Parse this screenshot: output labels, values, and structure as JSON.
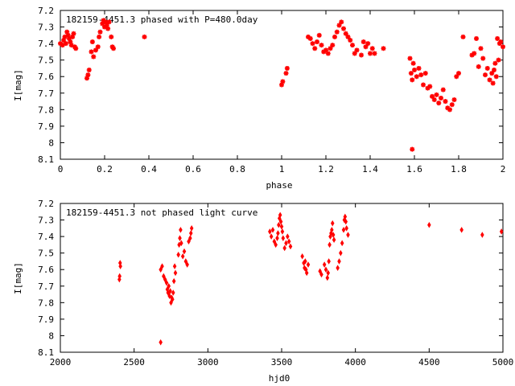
{
  "colors": {
    "points": "#ff0000",
    "axes": "#000000",
    "background": "#ffffff"
  },
  "chart_data": [
    {
      "type": "scatter",
      "title": "182159-4451.3 phased with P=480.0day",
      "xlabel": "phase",
      "ylabel": "I[mag]",
      "xlim": [
        0,
        2
      ],
      "ylim": [
        8.1,
        7.2
      ],
      "y_inverted": true,
      "xticks": [
        "0",
        "0.2",
        "0.4",
        "0.6",
        "0.8",
        "1",
        "1.2",
        "1.4",
        "1.6",
        "1.8",
        "2"
      ],
      "yticks": [
        "7.2",
        "7.3",
        "7.4",
        "7.5",
        "7.6",
        "7.7",
        "7.8",
        "7.9",
        "8",
        "8.1"
      ],
      "marker": "star",
      "series": [
        {
          "points": [
            [
              0.0,
              7.4
            ],
            [
              0.01,
              7.41
            ],
            [
              0.015,
              7.38
            ],
            [
              0.02,
              7.36
            ],
            [
              0.025,
              7.4
            ],
            [
              0.03,
              7.33
            ],
            [
              0.035,
              7.35
            ],
            [
              0.04,
              7.37
            ],
            [
              0.045,
              7.39
            ],
            [
              0.05,
              7.41
            ],
            [
              0.055,
              7.36
            ],
            [
              0.06,
              7.34
            ],
            [
              0.065,
              7.42
            ],
            [
              0.07,
              7.43
            ],
            [
              0.12,
              7.61
            ],
            [
              0.125,
              7.59
            ],
            [
              0.13,
              7.56
            ],
            [
              0.14,
              7.45
            ],
            [
              0.145,
              7.39
            ],
            [
              0.15,
              7.48
            ],
            [
              0.16,
              7.44
            ],
            [
              0.17,
              7.42
            ],
            [
              0.175,
              7.36
            ],
            [
              0.18,
              7.33
            ],
            [
              0.19,
              7.28
            ],
            [
              0.195,
              7.26
            ],
            [
              0.2,
              7.3
            ],
            [
              0.205,
              7.27
            ],
            [
              0.21,
              7.29
            ],
            [
              0.215,
              7.31
            ],
            [
              0.22,
              7.27
            ],
            [
              0.23,
              7.36
            ],
            [
              0.235,
              7.42
            ],
            [
              0.24,
              7.43
            ],
            [
              0.38,
              7.36
            ],
            [
              1.0,
              7.65
            ],
            [
              1.005,
              7.63
            ],
            [
              1.02,
              7.58
            ],
            [
              1.025,
              7.55
            ],
            [
              1.12,
              7.36
            ],
            [
              1.13,
              7.37
            ],
            [
              1.14,
              7.4
            ],
            [
              1.15,
              7.43
            ],
            [
              1.16,
              7.39
            ],
            [
              1.17,
              7.35
            ],
            [
              1.18,
              7.41
            ],
            [
              1.19,
              7.45
            ],
            [
              1.2,
              7.44
            ],
            [
              1.21,
              7.46
            ],
            [
              1.22,
              7.43
            ],
            [
              1.23,
              7.41
            ],
            [
              1.24,
              7.36
            ],
            [
              1.25,
              7.33
            ],
            [
              1.26,
              7.29
            ],
            [
              1.27,
              7.27
            ],
            [
              1.28,
              7.31
            ],
            [
              1.29,
              7.34
            ],
            [
              1.3,
              7.36
            ],
            [
              1.31,
              7.38
            ],
            [
              1.32,
              7.41
            ],
            [
              1.33,
              7.46
            ],
            [
              1.34,
              7.44
            ],
            [
              1.36,
              7.47
            ],
            [
              1.37,
              7.39
            ],
            [
              1.38,
              7.42
            ],
            [
              1.39,
              7.4
            ],
            [
              1.4,
              7.46
            ],
            [
              1.41,
              7.43
            ],
            [
              1.42,
              7.46
            ],
            [
              1.46,
              7.43
            ],
            [
              1.58,
              7.49
            ],
            [
              1.585,
              7.58
            ],
            [
              1.59,
              7.62
            ],
            [
              1.595,
              7.52
            ],
            [
              1.6,
              7.56
            ],
            [
              1.61,
              7.6
            ],
            [
              1.62,
              7.55
            ],
            [
              1.63,
              7.59
            ],
            [
              1.64,
              7.65
            ],
            [
              1.65,
              7.58
            ],
            [
              1.66,
              7.67
            ],
            [
              1.67,
              7.66
            ],
            [
              1.68,
              7.72
            ],
            [
              1.69,
              7.74
            ],
            [
              1.7,
              7.71
            ],
            [
              1.71,
              7.76
            ],
            [
              1.72,
              7.73
            ],
            [
              1.73,
              7.68
            ],
            [
              1.74,
              7.75
            ],
            [
              1.75,
              7.79
            ],
            [
              1.76,
              7.8
            ],
            [
              1.77,
              7.77
            ],
            [
              1.78,
              7.74
            ],
            [
              1.79,
              7.6
            ],
            [
              1.8,
              7.58
            ],
            [
              1.82,
              7.36
            ],
            [
              1.86,
              7.47
            ],
            [
              1.87,
              7.46
            ],
            [
              1.88,
              7.37
            ],
            [
              1.89,
              7.54
            ],
            [
              1.9,
              7.43
            ],
            [
              1.91,
              7.49
            ],
            [
              1.92,
              7.59
            ],
            [
              1.93,
              7.55
            ],
            [
              1.94,
              7.62
            ],
            [
              1.95,
              7.58
            ],
            [
              1.96,
              7.56
            ],
            [
              1.97,
              7.6
            ],
            [
              1.98,
              7.5
            ],
            [
              1.99,
              7.39
            ],
            [
              2.0,
              7.42
            ],
            [
              1.59,
              8.04
            ],
            [
              1.975,
              7.37
            ],
            [
              1.985,
              7.4
            ],
            [
              1.965,
              7.52
            ],
            [
              1.955,
              7.64
            ]
          ]
        }
      ],
      "grid": false
    },
    {
      "type": "scatter",
      "title": "182159-4451.3 not phased light curve",
      "xlabel": "hjd0",
      "ylabel": "I[mag]",
      "xlim": [
        2000,
        5000
      ],
      "ylim": [
        8.1,
        7.2
      ],
      "y_inverted": true,
      "xticks": [
        "2000",
        "2500",
        "3000",
        "3500",
        "4000",
        "4500",
        "5000"
      ],
      "yticks": [
        "7.2",
        "7.3",
        "7.4",
        "7.5",
        "7.6",
        "7.7",
        "7.8",
        "7.9",
        "8",
        "8.1"
      ],
      "marker": "diamond",
      "series": [
        {
          "points": [
            [
              2400,
              7.66
            ],
            [
              2402,
              7.64
            ],
            [
              2405,
              7.56
            ],
            [
              2407,
              7.58
            ],
            [
              2680,
              7.6
            ],
            [
              2690,
              7.58
            ],
            [
              2700,
              7.64
            ],
            [
              2710,
              7.66
            ],
            [
              2720,
              7.68
            ],
            [
              2725,
              7.72
            ],
            [
              2730,
              7.74
            ],
            [
              2735,
              7.7
            ],
            [
              2740,
              7.76
            ],
            [
              2745,
              7.73
            ],
            [
              2750,
              7.8
            ],
            [
              2755,
              7.77
            ],
            [
              2760,
              7.78
            ],
            [
              2765,
              7.74
            ],
            [
              2770,
              7.67
            ],
            [
              2775,
              7.58
            ],
            [
              2780,
              7.62
            ],
            [
              2800,
              7.51
            ],
            [
              2805,
              7.45
            ],
            [
              2810,
              7.41
            ],
            [
              2815,
              7.36
            ],
            [
              2820,
              7.44
            ],
            [
              2830,
              7.52
            ],
            [
              2840,
              7.49
            ],
            [
              2850,
              7.55
            ],
            [
              2860,
              7.57
            ],
            [
              2870,
              7.43
            ],
            [
              2880,
              7.41
            ],
            [
              2885,
              7.38
            ],
            [
              2890,
              7.35
            ],
            [
              2680,
              8.04
            ],
            [
              3420,
              7.37
            ],
            [
              3430,
              7.4
            ],
            [
              3440,
              7.36
            ],
            [
              3450,
              7.43
            ],
            [
              3460,
              7.45
            ],
            [
              3470,
              7.41
            ],
            [
              3475,
              7.38
            ],
            [
              3480,
              7.33
            ],
            [
              3485,
              7.29
            ],
            [
              3490,
              7.27
            ],
            [
              3495,
              7.31
            ],
            [
              3500,
              7.34
            ],
            [
              3505,
              7.37
            ],
            [
              3510,
              7.41
            ],
            [
              3520,
              7.47
            ],
            [
              3530,
              7.44
            ],
            [
              3540,
              7.4
            ],
            [
              3550,
              7.43
            ],
            [
              3560,
              7.46
            ],
            [
              3640,
              7.52
            ],
            [
              3650,
              7.56
            ],
            [
              3655,
              7.59
            ],
            [
              3660,
              7.55
            ],
            [
              3665,
              7.6
            ],
            [
              3670,
              7.62
            ],
            [
              3680,
              7.57
            ],
            [
              3760,
              7.61
            ],
            [
              3770,
              7.63
            ],
            [
              3790,
              7.57
            ],
            [
              3800,
              7.6
            ],
            [
              3810,
              7.65
            ],
            [
              3815,
              7.62
            ],
            [
              3820,
              7.55
            ],
            [
              3825,
              7.45
            ],
            [
              3830,
              7.4
            ],
            [
              3835,
              7.38
            ],
            [
              3840,
              7.36
            ],
            [
              3845,
              7.32
            ],
            [
              3850,
              7.39
            ],
            [
              3855,
              7.42
            ],
            [
              3880,
              7.59
            ],
            [
              3890,
              7.55
            ],
            [
              3900,
              7.5
            ],
            [
              3910,
              7.44
            ],
            [
              3920,
              7.36
            ],
            [
              3925,
              7.3
            ],
            [
              3930,
              7.28
            ],
            [
              3935,
              7.31
            ],
            [
              3940,
              7.35
            ],
            [
              3950,
              7.39
            ],
            [
              4500,
              7.33
            ],
            [
              4720,
              7.36
            ],
            [
              4860,
              7.39
            ],
            [
              4990,
              7.37
            ]
          ]
        }
      ],
      "grid": false
    }
  ]
}
